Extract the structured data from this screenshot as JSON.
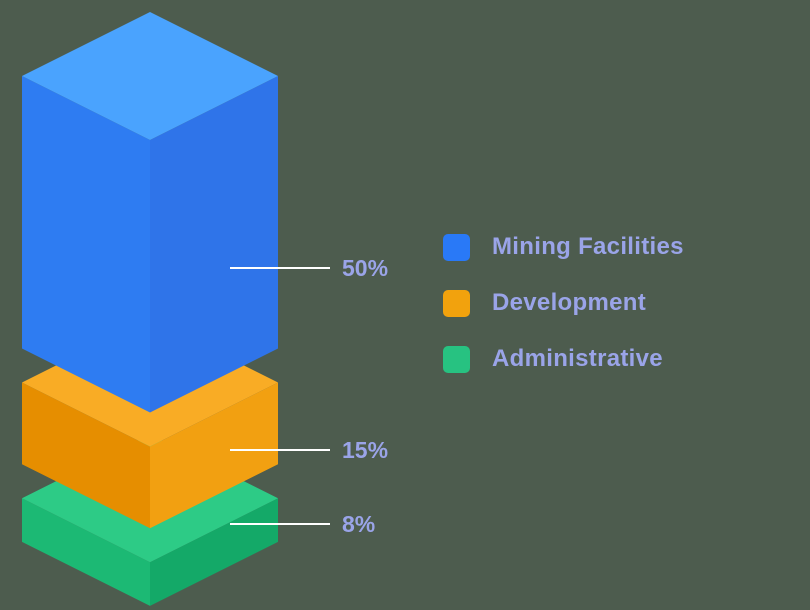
{
  "background_color": "#4D5C4E",
  "chart_data": {
    "type": "bar",
    "subtype": "stacked-3d-column",
    "title": "",
    "categories": [
      "Mining Facilities",
      "Development",
      "Administrative"
    ],
    "values": [
      50,
      15,
      8
    ],
    "value_labels": [
      "50%",
      "15%",
      "8%"
    ],
    "series_colors": [
      {
        "top": "#4AA3FE",
        "left": "#2E7CF2",
        "right": "#2F74E9"
      },
      {
        "top": "#F9AC25",
        "left": "#E68E00",
        "right": "#F2A011"
      },
      {
        "top": "#2DCB86",
        "left": "#1CB974",
        "right": "#14A968"
      }
    ],
    "leader_line_color": "#FFFFFF",
    "label_color": "#9AA4E8",
    "legend_position": "right",
    "grid": false,
    "xlabel": "",
    "ylabel": ""
  },
  "legend": {
    "items": [
      {
        "label": "Mining Facilities",
        "color": "#2979F7"
      },
      {
        "label": "Development",
        "color": "#F2A20D"
      },
      {
        "label": "Administrative",
        "color": "#27C281"
      }
    ]
  }
}
